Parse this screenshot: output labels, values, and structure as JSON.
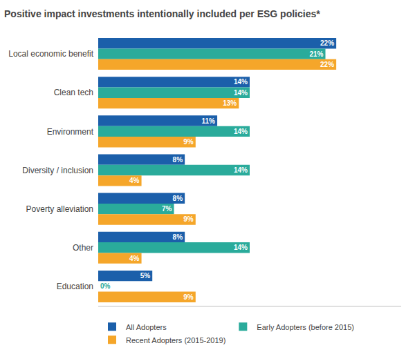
{
  "chart_data": {
    "type": "bar",
    "orientation": "horizontal",
    "title": "Positive impact investments intentionally included per ESG policies*",
    "categories": [
      "Local economic benefit",
      "Clean tech",
      "Environment",
      "Diversity / inclusion",
      "Poverty alleviation",
      "Other",
      "Education"
    ],
    "series": [
      {
        "name": "All Adopters",
        "color": "#1b5faa",
        "values": [
          22,
          14,
          11,
          8,
          8,
          8,
          5
        ],
        "value_labels": [
          "22%",
          "14%",
          "11%",
          "8%",
          "8%",
          "8%",
          "5%"
        ]
      },
      {
        "name": "Early Adopters (before 2015)",
        "color": "#2aab9b",
        "values": [
          21,
          14,
          14,
          14,
          7,
          14,
          0
        ],
        "value_labels": [
          "21%",
          "14%",
          "14%",
          "14%",
          "7%",
          "14%",
          "0%"
        ]
      },
      {
        "name": "Recent Adopters (2015-2019)",
        "color": "#f5a62a",
        "values": [
          22,
          13,
          9,
          4,
          9,
          4,
          9
        ],
        "value_labels": [
          "22%",
          "13%",
          "9%",
          "4%",
          "9%",
          "4%",
          "9%"
        ]
      }
    ],
    "xlim": [
      0,
      28
    ],
    "data_labels": true,
    "tick_labels": "y",
    "grid": false,
    "legend": "bottom"
  }
}
